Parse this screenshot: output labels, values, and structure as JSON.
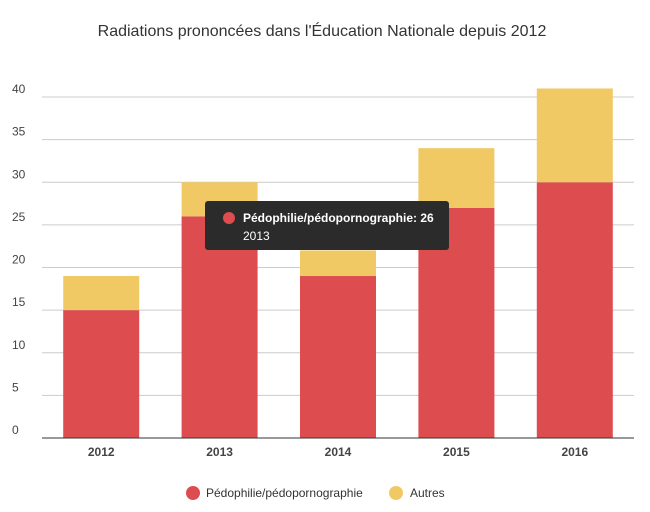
{
  "chart_data": {
    "type": "bar",
    "stacked": true,
    "title": "Radiations prononcées dans l'Éducation Nationale depuis 2012",
    "categories": [
      "2012",
      "2013",
      "2014",
      "2015",
      "2016"
    ],
    "series": [
      {
        "name": "Pédophilie/pédopornographie",
        "color": "#dd4c4f",
        "values": [
          15,
          26,
          19,
          27,
          30
        ]
      },
      {
        "name": "Autres",
        "color": "#f0c965",
        "values": [
          4,
          4,
          3,
          7,
          11
        ]
      }
    ],
    "ylim": [
      0,
      40
    ],
    "yticks": [
      0,
      5,
      10,
      15,
      20,
      25,
      30,
      35,
      40
    ],
    "grid": true,
    "legend": "bottom",
    "tooltip": {
      "series_label": "Pédophilie/pédopornographie: 26",
      "category": "2013",
      "color": "#dd4c4f"
    }
  }
}
